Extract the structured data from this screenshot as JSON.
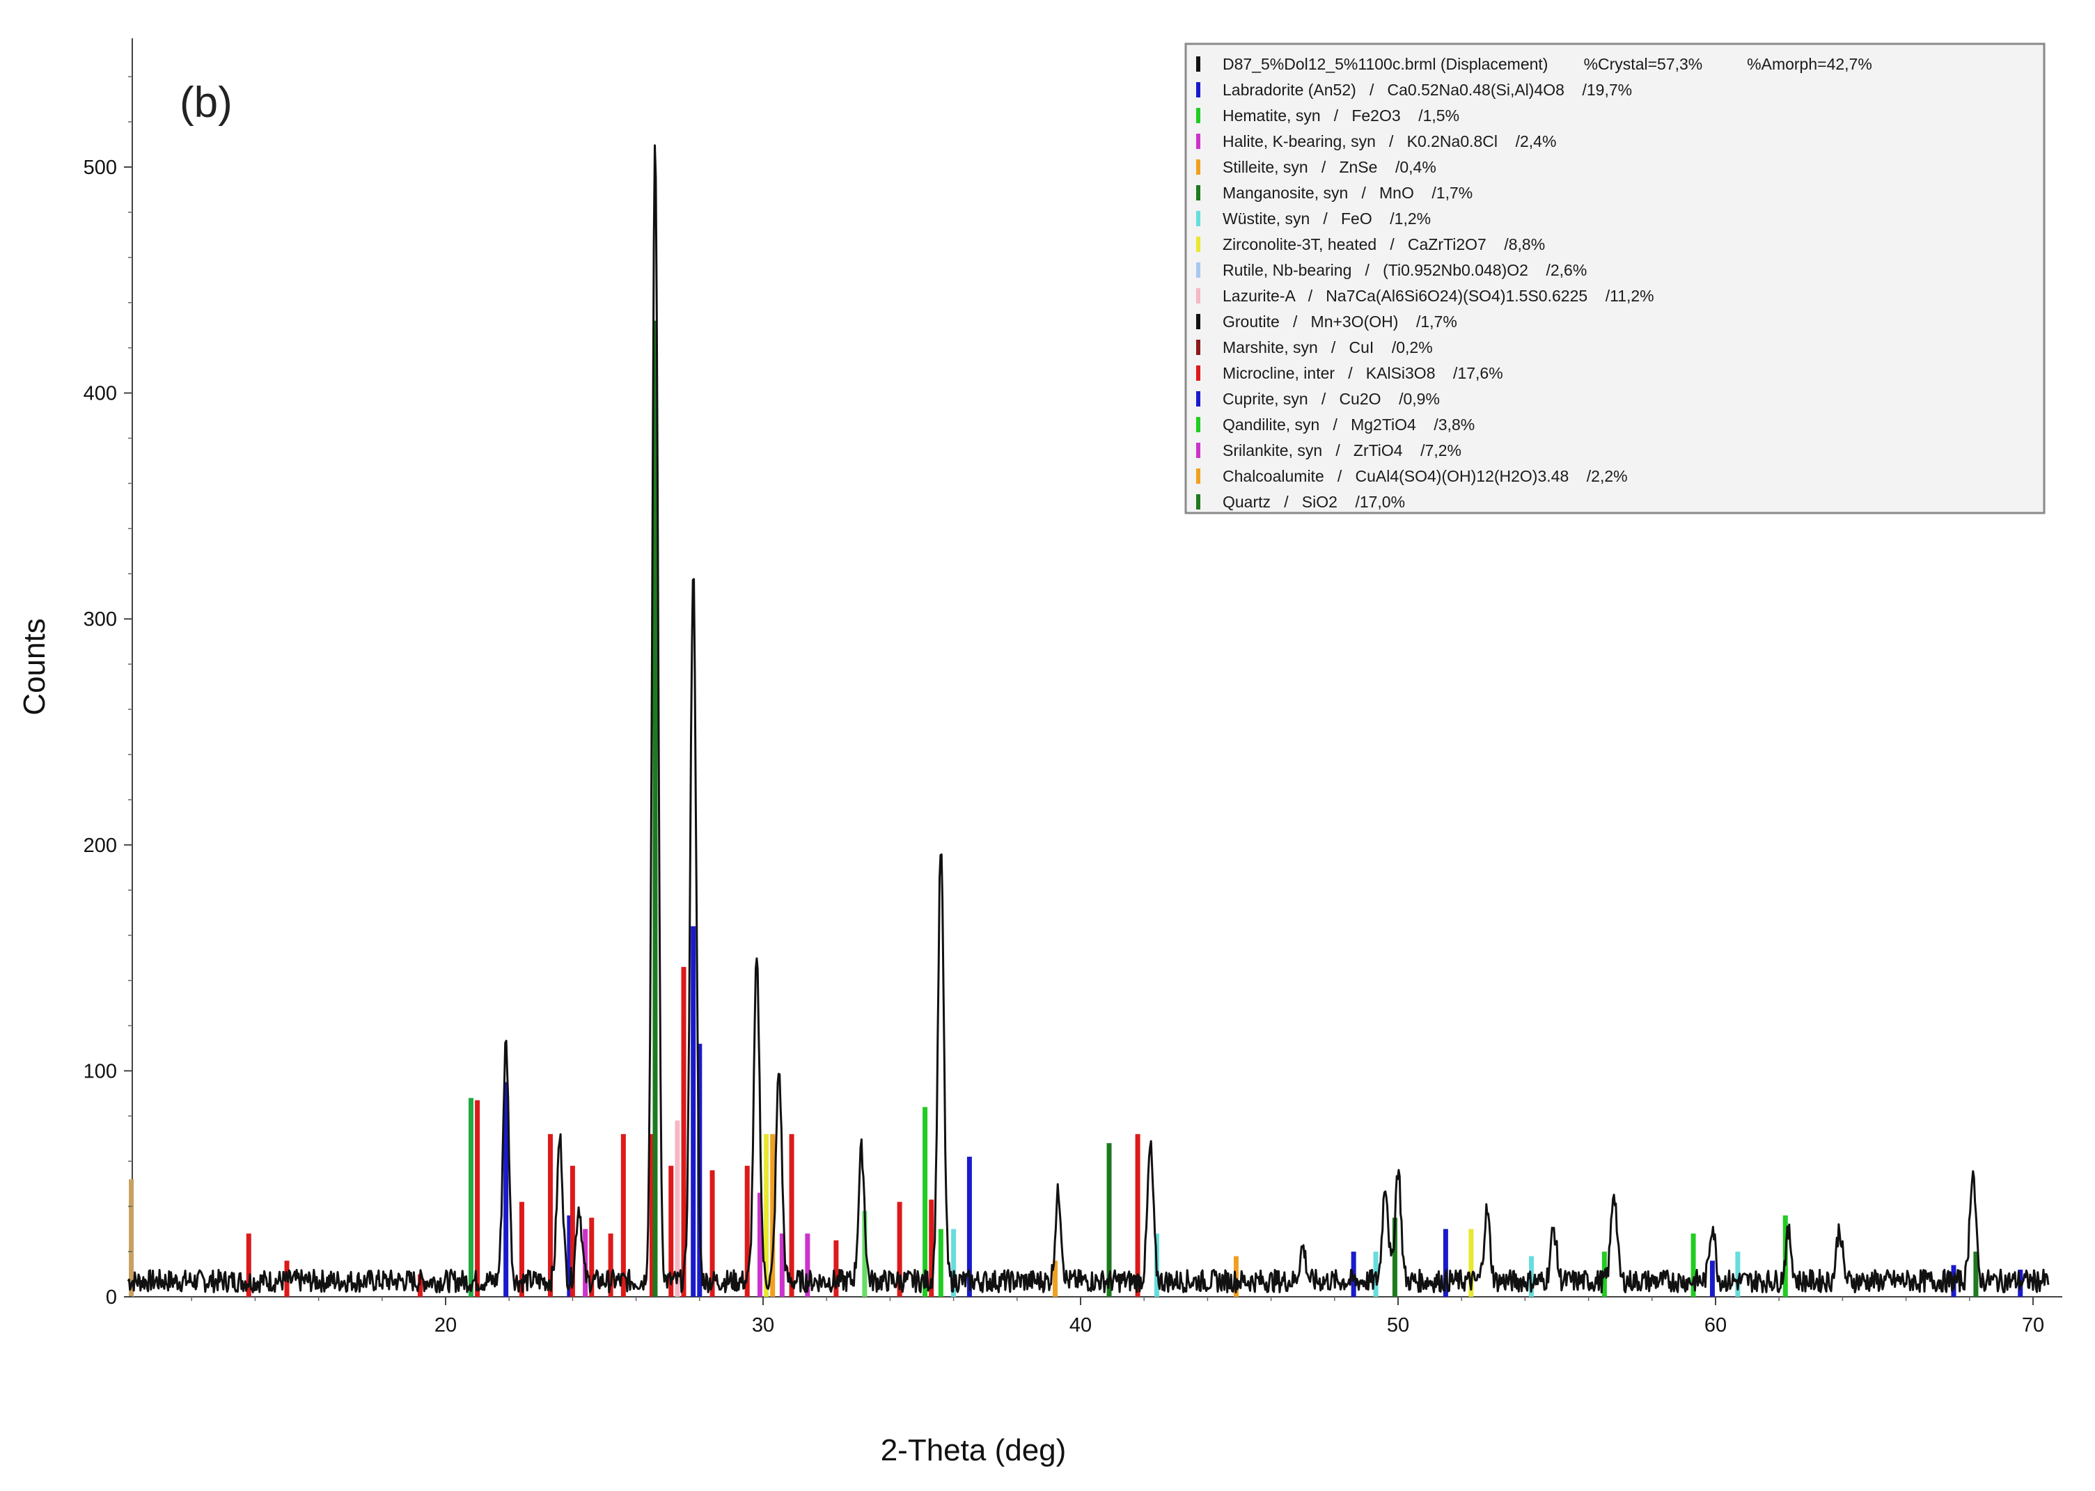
{
  "panel_label": "(b)",
  "chart_data": {
    "type": "line",
    "title": "",
    "xlabel": "2-Theta (deg)",
    "ylabel": "Counts",
    "xlim": [
      10,
      70.5
    ],
    "ylim": [
      0,
      550
    ],
    "x_ticks": [
      20,
      30,
      40,
      50,
      60,
      70
    ],
    "x_tick_labels": [
      "20",
      "30",
      "40",
      "50",
      "60",
      "70"
    ],
    "y_ticks": [
      0,
      100,
      200,
      300,
      400,
      500
    ],
    "y_tick_labels": [
      "0",
      "100",
      "200",
      "300",
      "400",
      "500"
    ],
    "grid": false,
    "legend_position": "top-right",
    "pattern": {
      "color": "#111111",
      "baseline": 7,
      "noise": 5,
      "peaks": [
        {
          "x": 21.9,
          "y": 112
        },
        {
          "x": 23.6,
          "y": 70
        },
        {
          "x": 24.2,
          "y": 40
        },
        {
          "x": 26.6,
          "y": 508
        },
        {
          "x": 27.8,
          "y": 322
        },
        {
          "x": 29.8,
          "y": 148
        },
        {
          "x": 30.5,
          "y": 100
        },
        {
          "x": 33.1,
          "y": 65
        },
        {
          "x": 35.6,
          "y": 198
        },
        {
          "x": 39.3,
          "y": 46
        },
        {
          "x": 42.2,
          "y": 66
        },
        {
          "x": 47.0,
          "y": 22
        },
        {
          "x": 49.6,
          "y": 50
        },
        {
          "x": 50.0,
          "y": 57
        },
        {
          "x": 52.8,
          "y": 38
        },
        {
          "x": 54.9,
          "y": 30
        },
        {
          "x": 56.8,
          "y": 47
        },
        {
          "x": 59.9,
          "y": 32
        },
        {
          "x": 62.3,
          "y": 28
        },
        {
          "x": 63.9,
          "y": 30
        },
        {
          "x": 68.1,
          "y": 56
        }
      ]
    },
    "reference_sticks": [
      {
        "x": 10.1,
        "y": 52,
        "color": "#c8a060"
      },
      {
        "x": 13.8,
        "y": 28,
        "color": "#dd1a1a"
      },
      {
        "x": 15.0,
        "y": 16,
        "color": "#dd1a1a"
      },
      {
        "x": 19.2,
        "y": 10,
        "color": "#dd1a1a"
      },
      {
        "x": 20.8,
        "y": 88,
        "color": "#22aa44"
      },
      {
        "x": 21.0,
        "y": 87,
        "color": "#dd1a1a"
      },
      {
        "x": 21.9,
        "y": 95,
        "color": "#1a1acc"
      },
      {
        "x": 22.4,
        "y": 42,
        "color": "#dd1a1a"
      },
      {
        "x": 23.3,
        "y": 72,
        "color": "#dd1a1a"
      },
      {
        "x": 23.9,
        "y": 36,
        "color": "#1a1acc"
      },
      {
        "x": 24.0,
        "y": 58,
        "color": "#dd1a1a"
      },
      {
        "x": 24.4,
        "y": 30,
        "color": "#cc33cc"
      },
      {
        "x": 24.6,
        "y": 35,
        "color": "#dd1a1a"
      },
      {
        "x": 25.2,
        "y": 28,
        "color": "#dd1a1a"
      },
      {
        "x": 25.6,
        "y": 72,
        "color": "#dd1a1a"
      },
      {
        "x": 26.5,
        "y": 72,
        "color": "#dd1a1a"
      },
      {
        "x": 26.6,
        "y": 432,
        "color": "#1e7a1e"
      },
      {
        "x": 27.1,
        "y": 58,
        "color": "#dd1a1a"
      },
      {
        "x": 27.3,
        "y": 78,
        "color": "#f4b8c4"
      },
      {
        "x": 27.5,
        "y": 146,
        "color": "#dd1a1a"
      },
      {
        "x": 27.8,
        "y": 164,
        "color": "#1a1acc"
      },
      {
        "x": 28.0,
        "y": 112,
        "color": "#1a1acc"
      },
      {
        "x": 28.4,
        "y": 56,
        "color": "#dd1a1a"
      },
      {
        "x": 29.5,
        "y": 58,
        "color": "#dd1a1a"
      },
      {
        "x": 29.9,
        "y": 46,
        "color": "#cc33cc"
      },
      {
        "x": 30.1,
        "y": 72,
        "color": "#e8e830"
      },
      {
        "x": 30.3,
        "y": 72,
        "color": "#f0a020"
      },
      {
        "x": 30.6,
        "y": 28,
        "color": "#cc33cc"
      },
      {
        "x": 30.9,
        "y": 72,
        "color": "#dd1a1a"
      },
      {
        "x": 31.4,
        "y": 28,
        "color": "#cc33cc"
      },
      {
        "x": 32.3,
        "y": 25,
        "color": "#dd1a1a"
      },
      {
        "x": 33.2,
        "y": 38,
        "color": "#66dd66"
      },
      {
        "x": 34.3,
        "y": 42,
        "color": "#dd1a1a"
      },
      {
        "x": 35.1,
        "y": 84,
        "color": "#22cc22"
      },
      {
        "x": 35.3,
        "y": 43,
        "color": "#dd1a1a"
      },
      {
        "x": 35.6,
        "y": 30,
        "color": "#22cc22"
      },
      {
        "x": 36.0,
        "y": 30,
        "color": "#66dddd"
      },
      {
        "x": 36.5,
        "y": 62,
        "color": "#1a1acc"
      },
      {
        "x": 39.2,
        "y": 16,
        "color": "#f0a020"
      },
      {
        "x": 40.9,
        "y": 68,
        "color": "#1e7a1e"
      },
      {
        "x": 41.8,
        "y": 72,
        "color": "#dd1a1a"
      },
      {
        "x": 42.4,
        "y": 28,
        "color": "#66dddd"
      },
      {
        "x": 44.9,
        "y": 18,
        "color": "#f0a020"
      },
      {
        "x": 48.6,
        "y": 20,
        "color": "#1a1acc"
      },
      {
        "x": 49.3,
        "y": 20,
        "color": "#66dddd"
      },
      {
        "x": 49.9,
        "y": 35,
        "color": "#1e7a1e"
      },
      {
        "x": 51.5,
        "y": 30,
        "color": "#1a1acc"
      },
      {
        "x": 52.3,
        "y": 30,
        "color": "#e8e830"
      },
      {
        "x": 54.2,
        "y": 18,
        "color": "#66dddd"
      },
      {
        "x": 56.5,
        "y": 20,
        "color": "#22cc22"
      },
      {
        "x": 59.3,
        "y": 28,
        "color": "#22cc22"
      },
      {
        "x": 59.9,
        "y": 16,
        "color": "#1a1acc"
      },
      {
        "x": 60.7,
        "y": 20,
        "color": "#66dddd"
      },
      {
        "x": 62.2,
        "y": 36,
        "color": "#22cc22"
      },
      {
        "x": 67.5,
        "y": 14,
        "color": "#1a1acc"
      },
      {
        "x": 68.2,
        "y": 20,
        "color": "#1e7a1e"
      },
      {
        "x": 69.6,
        "y": 12,
        "color": "#1a1acc"
      }
    ],
    "legend": [
      {
        "text": "D87_5%Dol12_5%1100c.brml (Displacement)        %Crystal=57,3%          %Amorph=42,7%",
        "color": "#111111"
      },
      {
        "text": "Labradorite (An52)   /   Ca0.52Na0.48(Si,Al)4O8    /19,7%",
        "color": "#1a1acc"
      },
      {
        "text": "Hematite, syn   /   Fe2O3    /1,5%",
        "color": "#22cc22"
      },
      {
        "text": "Halite, K-bearing, syn   /   K0.2Na0.8Cl    /2,4%",
        "color": "#cc33cc"
      },
      {
        "text": "Stilleite, syn   /   ZnSe    /0,4%",
        "color": "#f0a020"
      },
      {
        "text": "Manganosite, syn   /   MnO    /1,7%",
        "color": "#1e7a1e"
      },
      {
        "text": "Wüstite, syn   /   FeO    /1,2%",
        "color": "#66dddd"
      },
      {
        "text": "Zirconolite-3T, heated   /   CaZrTi2O7    /8,8%",
        "color": "#e8e830"
      },
      {
        "text": "Rutile, Nb-bearing   /   (Ti0.952Nb0.048)O2    /2,6%",
        "color": "#a8c8f0"
      },
      {
        "text": "Lazurite-A   /   Na7Ca(Al6Si6O24)(SO4)1.5S0.6225    /11,2%",
        "color": "#f4b8c4"
      },
      {
        "text": "Groutite   /   Mn+3O(OH)    /1,7%",
        "color": "#111111"
      },
      {
        "text": "Marshite, syn   /   CuI    /0,2%",
        "color": "#8b1a1a"
      },
      {
        "text": "Microcline, inter   /   KAlSi3O8    /17,6%",
        "color": "#dd1a1a"
      },
      {
        "text": "Cuprite, syn   /   Cu2O    /0,9%",
        "color": "#1a1acc"
      },
      {
        "text": "Qandilite, syn   /   Mg2TiO4    /3,8%",
        "color": "#22cc22"
      },
      {
        "text": "Srilankite, syn   /   ZrTiO4    /7,2%",
        "color": "#cc33cc"
      },
      {
        "text": "Chalcoalumite   /   CuAl4(SO4)(OH)12(H2O)3.48    /2,2%",
        "color": "#f0a020"
      },
      {
        "text": "Quartz   /   SiO2    /17,0%",
        "color": "#1e7a1e"
      }
    ]
  }
}
